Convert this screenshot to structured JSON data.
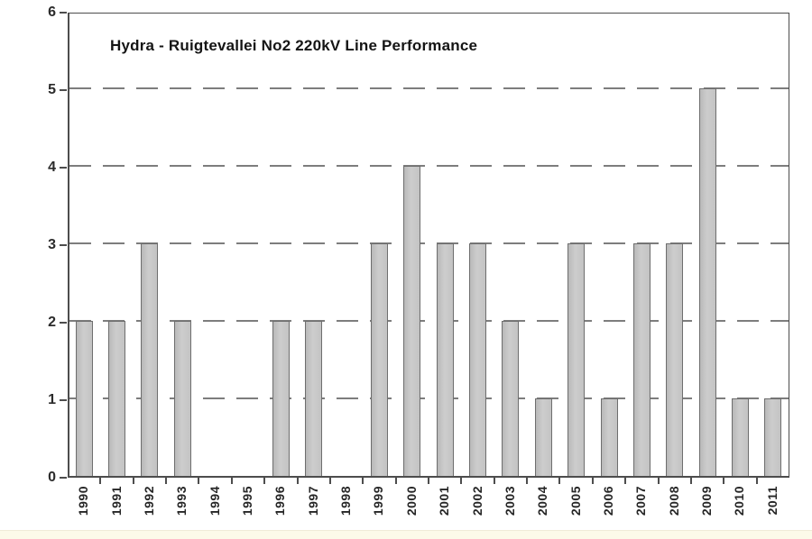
{
  "chart_data": {
    "type": "bar",
    "title": "Hydra - Ruigtevallei No2 220kV Line Performance",
    "categories": [
      "1990",
      "1991",
      "1992",
      "1993",
      "1994",
      "1995",
      "1996",
      "1997",
      "1998",
      "1999",
      "2000",
      "2001",
      "2002",
      "2003",
      "2004",
      "2005",
      "2006",
      "2007",
      "2008",
      "2009",
      "2010",
      "2011"
    ],
    "values": [
      2,
      2,
      3,
      2,
      0,
      0,
      2,
      2,
      0,
      3,
      4,
      3,
      3,
      2,
      1,
      3,
      1,
      3,
      3,
      5,
      1,
      1
    ],
    "xlabel": "",
    "ylabel": "",
    "ylim": [
      0,
      6
    ],
    "ytick_interval": 1,
    "yticks": [
      "0",
      "1",
      "2",
      "3",
      "4",
      "5",
      "6"
    ],
    "grid": "horizontal-dashed",
    "legend_position": "none",
    "colors": {
      "bar_fill": "#c6c6c6",
      "bar_border": "#6e6e6e",
      "grid_color": "#7d7d7d",
      "axis_color": "#4d4d4d",
      "title_color": "#151515",
      "background": "#ffffff",
      "footer_strip": "#fcfaе8"
    },
    "footer_strip_color": "#fcfae9"
  }
}
